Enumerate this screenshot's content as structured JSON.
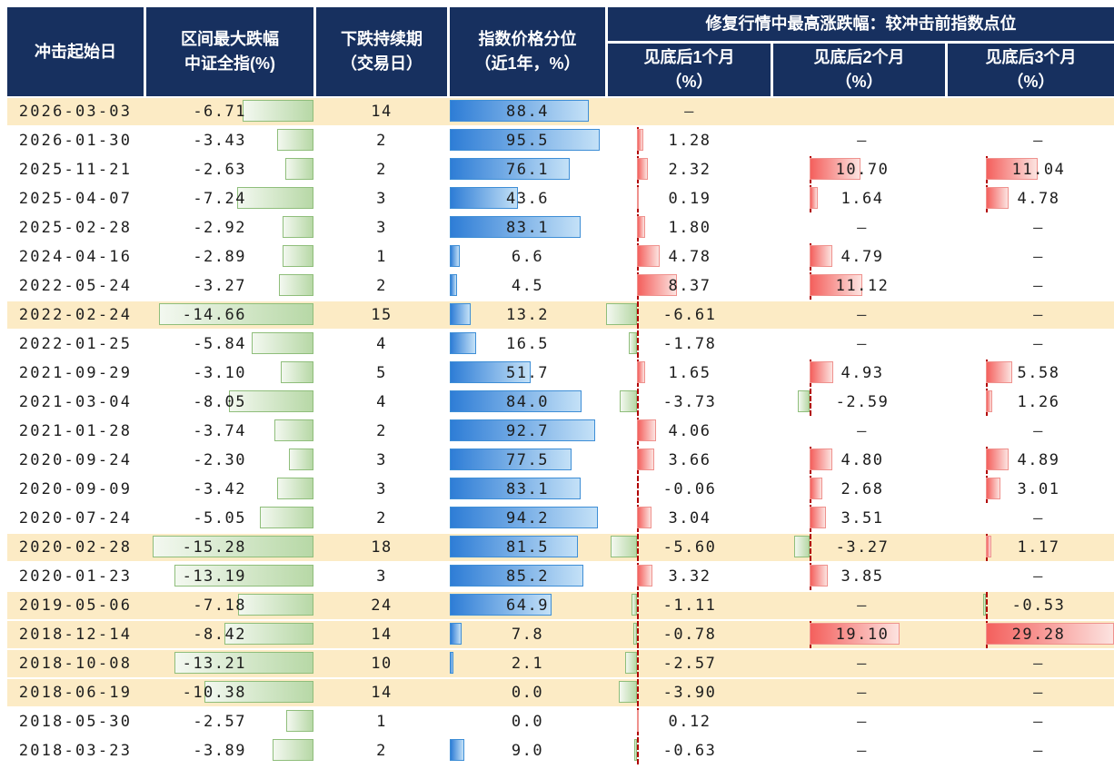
{
  "colors": {
    "header_bg": "#17305f",
    "header_text": "#ffffff",
    "highlight_row_bg": "#fcebc5",
    "row_bg": "#ffffff",
    "text": "#1d1d1d",
    "dash_text": "#3a3a3a",
    "green_bar_start": "#f3f8f0",
    "green_bar_end": "#b7d8a6",
    "green_bar_border": "#8fbe7b",
    "blue_bar_start": "#2e7dd6",
    "blue_bar_end": "#c4e1f7",
    "blue_bar_border": "#3e8ed6",
    "red_bar_start": "#f4605d",
    "red_bar_end": "#fce3e0",
    "red_bar_border": "#ef928e",
    "axis_line": "#b00000"
  },
  "chart_data": {
    "type": "table",
    "group_header": "修复行情中最高涨跌幅：较冲击前指数点位",
    "missing_marker": "–",
    "columns": [
      {
        "line1": "冲击起始日",
        "line2": ""
      },
      {
        "line1": "区间最大跌幅",
        "line2": "中证全指(%)"
      },
      {
        "line1": "下跌持续期",
        "line2": "（交易日）"
      },
      {
        "line1": "指数价格分位",
        "line2": "（近1年，%）"
      },
      {
        "line1": "见底后1个月",
        "line2": "（%）"
      },
      {
        "line1": "见底后2个月",
        "line2": "（%）"
      },
      {
        "line1": "见底后3个月",
        "line2": "（%）"
      }
    ],
    "rows": [
      {
        "date": "2026-03-03",
        "max_drawdown": -6.71,
        "duration_days": 14,
        "price_percentile": 88.4,
        "m1": "–",
        "m2": null,
        "m3": null,
        "highlight": true
      },
      {
        "date": "2026-01-30",
        "max_drawdown": -3.43,
        "duration_days": 2,
        "price_percentile": 95.5,
        "m1": 1.28,
        "m2": "–",
        "m3": "–",
        "highlight": false
      },
      {
        "date": "2025-11-21",
        "max_drawdown": -2.63,
        "duration_days": 2,
        "price_percentile": 76.1,
        "m1": 2.32,
        "m2": 10.7,
        "m3": 11.04,
        "highlight": false
      },
      {
        "date": "2025-04-07",
        "max_drawdown": -7.24,
        "duration_days": 3,
        "price_percentile": 43.6,
        "m1": 0.19,
        "m2": 1.64,
        "m3": 4.78,
        "highlight": false
      },
      {
        "date": "2025-02-28",
        "max_drawdown": -2.92,
        "duration_days": 3,
        "price_percentile": 83.1,
        "m1": 1.8,
        "m2": "–",
        "m3": "–",
        "highlight": false
      },
      {
        "date": "2024-04-16",
        "max_drawdown": -2.89,
        "duration_days": 1,
        "price_percentile": 6.6,
        "m1": 4.78,
        "m2": 4.79,
        "m3": "–",
        "highlight": false
      },
      {
        "date": "2022-05-24",
        "max_drawdown": -3.27,
        "duration_days": 2,
        "price_percentile": 4.5,
        "m1": 8.37,
        "m2": 11.12,
        "m3": "–",
        "highlight": false
      },
      {
        "date": "2022-02-24",
        "max_drawdown": -14.66,
        "duration_days": 15,
        "price_percentile": 13.2,
        "m1": -6.61,
        "m2": "–",
        "m3": "–",
        "highlight": true
      },
      {
        "date": "2022-01-25",
        "max_drawdown": -5.84,
        "duration_days": 4,
        "price_percentile": 16.5,
        "m1": -1.78,
        "m2": "–",
        "m3": "–",
        "highlight": false
      },
      {
        "date": "2021-09-29",
        "max_drawdown": -3.1,
        "duration_days": 5,
        "price_percentile": 51.7,
        "m1": 1.65,
        "m2": 4.93,
        "m3": 5.58,
        "highlight": false
      },
      {
        "date": "2021-03-04",
        "max_drawdown": -8.05,
        "duration_days": 4,
        "price_percentile": 84.0,
        "m1": -3.73,
        "m2": -2.59,
        "m3": 1.26,
        "highlight": false
      },
      {
        "date": "2021-01-28",
        "max_drawdown": -3.74,
        "duration_days": 2,
        "price_percentile": 92.7,
        "m1": 4.06,
        "m2": "–",
        "m3": "–",
        "highlight": false
      },
      {
        "date": "2020-09-24",
        "max_drawdown": -2.3,
        "duration_days": 3,
        "price_percentile": 77.5,
        "m1": 3.66,
        "m2": 4.8,
        "m3": 4.89,
        "highlight": false
      },
      {
        "date": "2020-09-09",
        "max_drawdown": -3.42,
        "duration_days": 3,
        "price_percentile": 83.1,
        "m1": -0.06,
        "m2": 2.68,
        "m3": 3.01,
        "highlight": false
      },
      {
        "date": "2020-07-24",
        "max_drawdown": -5.05,
        "duration_days": 2,
        "price_percentile": 94.2,
        "m1": 3.04,
        "m2": 3.51,
        "m3": "–",
        "highlight": false
      },
      {
        "date": "2020-02-28",
        "max_drawdown": -15.28,
        "duration_days": 18,
        "price_percentile": 81.5,
        "m1": -5.6,
        "m2": -3.27,
        "m3": 1.17,
        "highlight": true
      },
      {
        "date": "2020-01-23",
        "max_drawdown": -13.19,
        "duration_days": 3,
        "price_percentile": 85.2,
        "m1": 3.32,
        "m2": 3.85,
        "m3": "–",
        "highlight": false
      },
      {
        "date": "2019-05-06",
        "max_drawdown": -7.18,
        "duration_days": 24,
        "price_percentile": 64.9,
        "m1": -1.11,
        "m2": "–",
        "m3": -0.53,
        "highlight": true
      },
      {
        "date": "2018-12-14",
        "max_drawdown": -8.42,
        "duration_days": 14,
        "price_percentile": 7.8,
        "m1": -0.78,
        "m2": 19.1,
        "m3": 29.28,
        "highlight": true
      },
      {
        "date": "2018-10-08",
        "max_drawdown": -13.21,
        "duration_days": 10,
        "price_percentile": 2.1,
        "m1": -2.57,
        "m2": "–",
        "m3": "–",
        "highlight": true
      },
      {
        "date": "2018-06-19",
        "max_drawdown": -10.38,
        "duration_days": 14,
        "price_percentile": 0.0,
        "m1": -3.9,
        "m2": "–",
        "m3": "–",
        "highlight": true
      },
      {
        "date": "2018-05-30",
        "max_drawdown": -2.57,
        "duration_days": 1,
        "price_percentile": 0.0,
        "m1": 0.12,
        "m2": "–",
        "m3": "–",
        "highlight": false
      },
      {
        "date": "2018-03-23",
        "max_drawdown": -3.89,
        "duration_days": 2,
        "price_percentile": 9.0,
        "m1": -0.63,
        "m2": "–",
        "m3": "–",
        "highlight": false
      }
    ]
  }
}
